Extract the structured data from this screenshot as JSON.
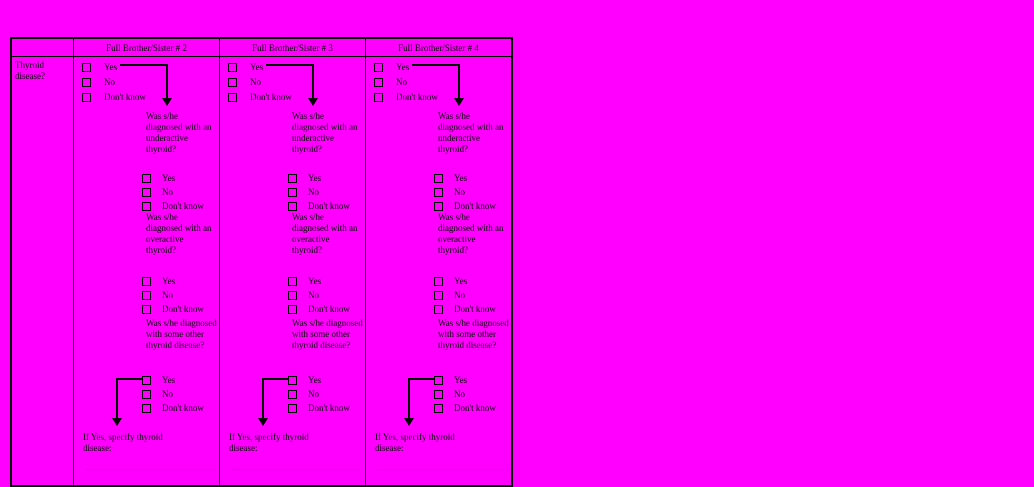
{
  "colors": {
    "background": "#ff00ff",
    "line": "#000000",
    "text": "#000000"
  },
  "row_label": "Thyroid disease?",
  "columns": [
    {
      "header": "Full Brother/Sister # 2",
      "primary_options": [
        "Yes",
        "No",
        "Don't know"
      ],
      "underactive_question": "Was s/he diagnosed with an underactive thyroid?",
      "underactive_options": [
        "Yes",
        "No",
        "Don't know"
      ],
      "overactive_question": "Was s/he diagnosed with an overactive thyroid?",
      "overactive_options": [
        "Yes",
        "No",
        "Don't know"
      ],
      "other_question": "Was s/he diagnosed with some other thyroid disease?",
      "other_options": [
        "Yes",
        "No",
        "Don't know"
      ],
      "specify_label": "If Yes, specify thyroid disease:"
    },
    {
      "header": "Full Brother/Sister # 3",
      "primary_options": [
        "Yes",
        "No",
        "Don't know"
      ],
      "underactive_question": "Was s/he diagnosed with an underactive thyroid?",
      "underactive_options": [
        "Yes",
        "No",
        "Don't know"
      ],
      "overactive_question": "Was s/he diagnosed with an overactive thyroid?",
      "overactive_options": [
        "Yes",
        "No",
        "Don't know"
      ],
      "other_question": "Was s/he diagnosed with some other thyroid disease?",
      "other_options": [
        "Yes",
        "No",
        "Don't know"
      ],
      "specify_label": "If Yes, specify thyroid disease:"
    },
    {
      "header": "Full Brother/Sister # 4",
      "primary_options": [
        "Yes",
        "No",
        "Don't know"
      ],
      "underactive_question": "Was s/he diagnosed with an underactive thyroid?",
      "underactive_options": [
        "Yes",
        "No",
        "Don't know"
      ],
      "overactive_question": "Was s/he diagnosed with an overactive thyroid?",
      "overactive_options": [
        "Yes",
        "No",
        "Don't know"
      ],
      "other_question": "Was s/he diagnosed with some other thyroid disease?",
      "other_options": [
        "Yes",
        "No",
        "Don't know"
      ],
      "specify_label": "If Yes, specify thyroid disease:"
    }
  ]
}
